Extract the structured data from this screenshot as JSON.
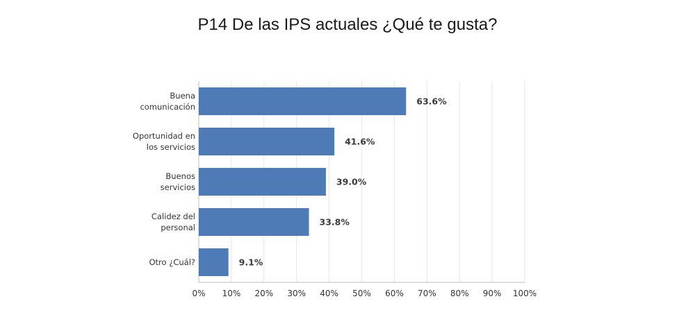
{
  "chart_data": {
    "type": "bar",
    "orientation": "horizontal",
    "title": "P14 De las IPS actuales ¿Qué te gusta?",
    "categories": [
      [
        "Buena",
        "comunicación"
      ],
      [
        "Oportunidad en",
        "los servicios"
      ],
      [
        "Buenos",
        "servicios"
      ],
      [
        "Calidez del",
        "personal"
      ],
      [
        "Otro ¿Cuál?"
      ]
    ],
    "values": [
      63.6,
      41.6,
      39.0,
      33.8,
      9.1
    ],
    "data_labels": [
      "63.6%",
      "41.6%",
      "39.0%",
      "33.8%",
      "9.1%"
    ],
    "xlim": [
      0,
      100
    ],
    "xticks": [
      "0%",
      "10%",
      "20%",
      "30%",
      "40%",
      "50%",
      "60%",
      "70%",
      "80%",
      "90%",
      "100%"
    ],
    "grid": true,
    "bar_color": "#4e7ab5"
  }
}
